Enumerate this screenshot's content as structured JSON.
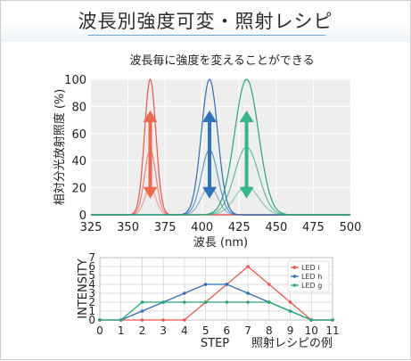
{
  "page": {
    "title": "波長別強度可変・照射レシピ",
    "caption": "照射レシピの例"
  },
  "chart_data": [
    {
      "type": "line",
      "title": "波長毎に強度を変えることができる",
      "xlabel": "波長 (nm)",
      "ylabel": "相対分光放射照度 (%)",
      "xlim": [
        325,
        500
      ],
      "ylim": [
        0,
        100
      ],
      "x_ticks": [
        325,
        350,
        375,
        400,
        425,
        450,
        475,
        500
      ],
      "y_ticks": [
        0,
        20,
        40,
        60,
        80,
        100
      ],
      "grid": true,
      "series": [
        {
          "color": "#e8574a",
          "peak_nm": 365,
          "fwhm_nm": 9,
          "levels": [
            100,
            48,
            20
          ]
        },
        {
          "color": "#2e6db7",
          "peak_nm": 405,
          "fwhm_nm": 13,
          "levels": [
            100,
            48,
            21
          ]
        },
        {
          "color": "#2aa57a",
          "peak_nm": 430,
          "fwhm_nm": 19,
          "levels": [
            100,
            50,
            21
          ]
        }
      ],
      "arrows": [
        {
          "color": "#ef6a52",
          "x_nm": 365,
          "from": 12,
          "to": 77
        },
        {
          "color": "#2f72bd",
          "x_nm": 405,
          "from": 12,
          "to": 77
        },
        {
          "color": "#36b58c",
          "x_nm": 430,
          "from": 12,
          "to": 77
        }
      ]
    },
    {
      "type": "line",
      "xlabel": "STEP",
      "ylabel": "INTENSITY",
      "xlim": [
        0,
        11
      ],
      "ylim": [
        0,
        7
      ],
      "x_ticks": [
        0,
        1,
        2,
        3,
        4,
        5,
        6,
        7,
        8,
        9,
        10,
        11
      ],
      "y_ticks": [
        0,
        1,
        2,
        3,
        4,
        5,
        6,
        7
      ],
      "grid": true,
      "legend_position": "top-right",
      "x": [
        0,
        1,
        2,
        3,
        4,
        5,
        6,
        7,
        8,
        9,
        10,
        11
      ],
      "series": [
        {
          "name": "LED i",
          "color": "#e8574a",
          "values": [
            0,
            0,
            0,
            0,
            0,
            2,
            4,
            6,
            4,
            2,
            0,
            0
          ]
        },
        {
          "name": "LED h",
          "color": "#2e6db7",
          "values": [
            0,
            0,
            1,
            2,
            3,
            4,
            4,
            3,
            2,
            1,
            0,
            0
          ]
        },
        {
          "name": "LED g",
          "color": "#2aa57a",
          "values": [
            0,
            0,
            2,
            2,
            2,
            2,
            2,
            2,
            2,
            1,
            0,
            0
          ]
        }
      ]
    }
  ]
}
